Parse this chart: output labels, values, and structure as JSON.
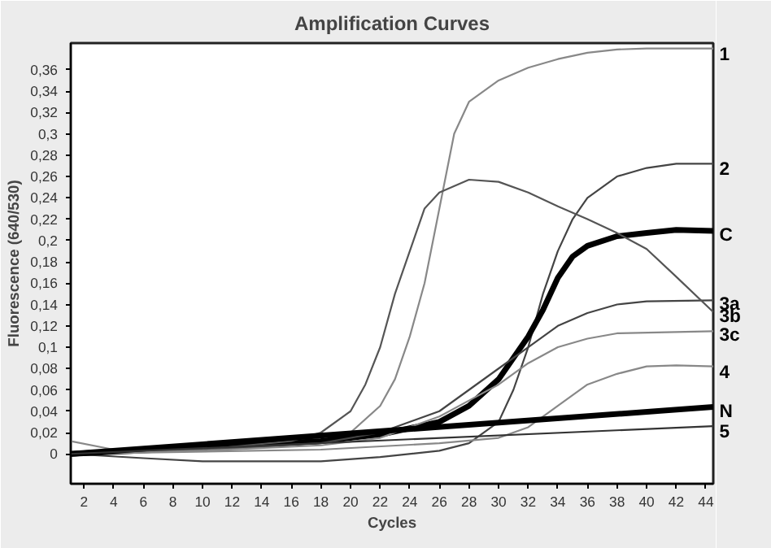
{
  "chart_data": {
    "type": "line",
    "title": "Amplification Curves",
    "xlabel": "Cycles",
    "ylabel": "Fluorescence (640/530)",
    "xlim": [
      1.1,
      44.5
    ],
    "ylim": [
      -0.028,
      0.385
    ],
    "xticks": [
      2,
      4,
      6,
      8,
      10,
      12,
      14,
      16,
      18,
      20,
      22,
      24,
      26,
      28,
      30,
      32,
      34,
      36,
      38,
      40,
      42,
      44
    ],
    "yticks": [
      0,
      {
        "value": 0.02,
        "label": "0,02"
      },
      {
        "value": 0.04,
        "label": "0,04"
      },
      {
        "value": 0.06,
        "label": "0,06"
      },
      {
        "value": 0.08,
        "label": "0,08"
      },
      {
        "value": 0.1,
        "label": "0,1"
      },
      {
        "value": 0.12,
        "label": "0,12"
      },
      {
        "value": 0.14,
        "label": "0,14"
      },
      {
        "value": 0.16,
        "label": "0,16"
      },
      {
        "value": 0.18,
        "label": "0,18"
      },
      {
        "value": 0.2,
        "label": "0,2"
      },
      {
        "value": 0.22,
        "label": "0,22"
      },
      {
        "value": 0.24,
        "label": "0,24"
      },
      {
        "value": 0.26,
        "label": "0,26"
      },
      {
        "value": 0.28,
        "label": "0,28"
      },
      {
        "value": 0.3,
        "label": "0,3"
      },
      {
        "value": 0.32,
        "label": "0,32"
      },
      {
        "value": 0.34,
        "label": "0,34"
      },
      {
        "value": 0.36,
        "label": "0,36"
      }
    ],
    "grid": false,
    "legend": false,
    "marker": "none",
    "line_style": "solid",
    "series": [
      {
        "name": "1",
        "color": "#888888",
        "x": [
          1.1,
          4,
          10,
          18,
          20,
          22,
          23,
          24,
          25,
          26,
          27,
          28,
          30,
          32,
          34,
          36,
          38,
          40,
          44.5
        ],
        "values": [
          0.012,
          0.004,
          0.003,
          0.01,
          0.02,
          0.045,
          0.07,
          0.11,
          0.16,
          0.23,
          0.3,
          0.33,
          0.35,
          0.362,
          0.37,
          0.376,
          0.379,
          0.38,
          0.38
        ]
      },
      {
        "name": "2",
        "color": "#444444",
        "x": [
          1.1,
          6,
          10,
          18,
          22,
          26,
          28,
          30,
          31,
          32,
          33,
          34,
          35,
          36,
          38,
          40,
          42,
          44.5
        ],
        "values": [
          0.0,
          -0.004,
          -0.007,
          -0.007,
          -0.003,
          0.003,
          0.01,
          0.03,
          0.06,
          0.1,
          0.15,
          0.19,
          0.22,
          0.24,
          0.26,
          0.268,
          0.272,
          0.272
        ]
      },
      {
        "name": "C",
        "color": "#000000",
        "x": [
          1.1,
          10,
          18,
          22,
          26,
          28,
          30,
          31,
          32,
          33,
          34,
          35,
          36,
          38,
          40,
          42,
          44.5
        ],
        "values": [
          0.0,
          0.006,
          0.012,
          0.018,
          0.03,
          0.045,
          0.07,
          0.09,
          0.11,
          0.135,
          0.165,
          0.185,
          0.195,
          0.204,
          0.207,
          0.21,
          0.209
        ]
      },
      {
        "name": "3a",
        "color": "#444444",
        "x": [
          1.1,
          10,
          18,
          22,
          26,
          28,
          30,
          32,
          34,
          36,
          38,
          40,
          44.5
        ],
        "values": [
          0.001,
          0.004,
          0.01,
          0.02,
          0.04,
          0.06,
          0.08,
          0.1,
          0.12,
          0.132,
          0.14,
          0.143,
          0.144
        ]
      },
      {
        "name": "3b",
        "color": "#555555",
        "x": [
          1.1,
          10,
          16,
          18,
          20,
          21,
          22,
          23,
          24,
          25,
          26,
          28,
          30,
          32,
          34,
          36,
          38,
          40,
          42,
          44.5
        ],
        "values": [
          0.0,
          0.004,
          0.012,
          0.02,
          0.04,
          0.065,
          0.1,
          0.15,
          0.19,
          0.23,
          0.245,
          0.257,
          0.255,
          0.245,
          0.232,
          0.22,
          0.207,
          0.192,
          0.166,
          0.133
        ]
      },
      {
        "name": "3c",
        "color": "#888888",
        "x": [
          1.1,
          10,
          18,
          22,
          26,
          28,
          30,
          32,
          34,
          36,
          38,
          44.5
        ],
        "values": [
          0.0,
          0.003,
          0.008,
          0.015,
          0.035,
          0.05,
          0.065,
          0.085,
          0.1,
          0.108,
          0.113,
          0.115
        ]
      },
      {
        "name": "4",
        "color": "#888888",
        "x": [
          1.1,
          18,
          26,
          30,
          32,
          34,
          36,
          38,
          40,
          42,
          44.5
        ],
        "values": [
          0.0,
          0.004,
          0.01,
          0.015,
          0.025,
          0.045,
          0.065,
          0.075,
          0.082,
          0.083,
          0.082
        ]
      },
      {
        "name": "N",
        "color": "#000000",
        "x": [
          1.1,
          44.5
        ],
        "values": [
          0.0,
          0.044
        ]
      },
      {
        "name": "5",
        "color": "#333333",
        "x": [
          1.1,
          44.5
        ],
        "values": [
          0.0,
          0.026
        ]
      }
    ]
  }
}
